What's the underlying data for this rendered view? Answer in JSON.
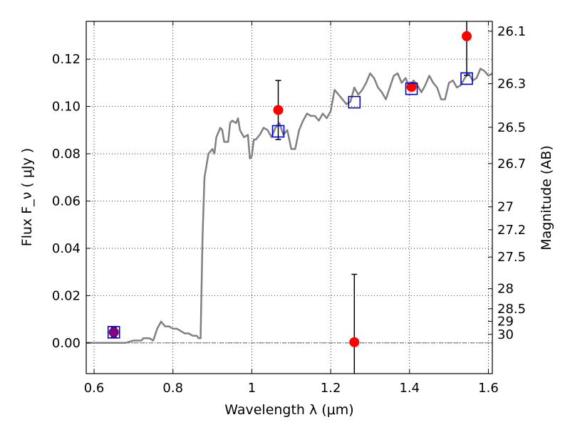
{
  "chart_data": {
    "type": "scatter",
    "xlabel": "Wavelength  λ (μm)",
    "ylabel_left": "Flux  F_ν  ( μJy )",
    "ylabel_right": "Magnitude (AB)",
    "xlim": [
      0.58,
      1.61
    ],
    "ylim": [
      -0.013,
      0.136
    ],
    "x_ticks": [
      0.6,
      0.8,
      1.0,
      1.2,
      1.4,
      1.6
    ],
    "x_tick_labels": [
      "0.6",
      "0.8",
      "1",
      "1.2",
      "1.4",
      "1.6"
    ],
    "y_ticks": [
      0.0,
      0.02,
      0.04,
      0.06,
      0.08,
      0.1,
      0.12
    ],
    "y_tick_labels": [
      "0.00",
      "0.02",
      "0.04",
      "0.06",
      "0.08",
      "0.10",
      "0.12"
    ],
    "right_ticks": [
      {
        "mag": 26.1,
        "label": "26.1"
      },
      {
        "mag": 26.3,
        "label": "26.3"
      },
      {
        "mag": 26.5,
        "label": "26.5"
      },
      {
        "mag": 26.7,
        "label": "26.7"
      },
      {
        "mag": 27.0,
        "label": "27"
      },
      {
        "mag": 27.2,
        "label": "27.2"
      },
      {
        "mag": 27.5,
        "label": "27.5"
      },
      {
        "mag": 28.0,
        "label": "28"
      },
      {
        "mag": 28.5,
        "label": "28.5"
      },
      {
        "mag": 29.0,
        "label": "29"
      },
      {
        "mag": 30.0,
        "label": "30"
      }
    ],
    "grid": true,
    "zero_line": true,
    "colors": {
      "sed": "#808080",
      "observed": "#ff0000",
      "model": "#0000cc",
      "model_first": "#800080",
      "errorbar": "#000000",
      "grid": "#000000"
    },
    "sed_template": {
      "x": [
        0.58,
        0.6,
        0.62,
        0.64,
        0.66,
        0.68,
        0.7,
        0.71,
        0.72,
        0.725,
        0.73,
        0.74,
        0.75,
        0.76,
        0.77,
        0.78,
        0.79,
        0.8,
        0.81,
        0.82,
        0.83,
        0.84,
        0.85,
        0.86,
        0.865,
        0.87,
        0.875,
        0.88,
        0.89,
        0.9,
        0.905,
        0.91,
        0.92,
        0.925,
        0.93,
        0.94,
        0.945,
        0.95,
        0.96,
        0.965,
        0.97,
        0.98,
        0.99,
        0.995,
        1.0,
        1.005,
        1.01,
        1.02,
        1.03,
        1.04,
        1.05,
        1.06,
        1.07,
        1.08,
        1.09,
        1.1,
        1.11,
        1.12,
        1.13,
        1.14,
        1.15,
        1.16,
        1.17,
        1.18,
        1.19,
        1.2,
        1.21,
        1.22,
        1.23,
        1.24,
        1.25,
        1.26,
        1.27,
        1.28,
        1.29,
        1.3,
        1.31,
        1.32,
        1.33,
        1.34,
        1.35,
        1.36,
        1.37,
        1.38,
        1.39,
        1.4,
        1.41,
        1.42,
        1.43,
        1.44,
        1.45,
        1.46,
        1.47,
        1.48,
        1.49,
        1.5,
        1.51,
        1.52,
        1.53,
        1.54,
        1.55,
        1.56,
        1.57,
        1.58,
        1.59,
        1.6,
        1.61
      ],
      "y": [
        0.0,
        0.0,
        0.0,
        0.0,
        0.0,
        0.0,
        0.001,
        0.001,
        0.001,
        0.002,
        0.002,
        0.002,
        0.001,
        0.006,
        0.009,
        0.007,
        0.007,
        0.006,
        0.006,
        0.005,
        0.004,
        0.004,
        0.003,
        0.003,
        0.002,
        0.002,
        0.045,
        0.07,
        0.08,
        0.082,
        0.08,
        0.087,
        0.091,
        0.09,
        0.085,
        0.085,
        0.093,
        0.094,
        0.093,
        0.095,
        0.09,
        0.087,
        0.088,
        0.078,
        0.079,
        0.086,
        0.086,
        0.088,
        0.091,
        0.09,
        0.087,
        0.091,
        0.093,
        0.088,
        0.09,
        0.082,
        0.082,
        0.09,
        0.094,
        0.097,
        0.096,
        0.096,
        0.094,
        0.097,
        0.095,
        0.098,
        0.107,
        0.105,
        0.103,
        0.101,
        0.102,
        0.108,
        0.105,
        0.107,
        0.11,
        0.114,
        0.112,
        0.108,
        0.106,
        0.103,
        0.108,
        0.113,
        0.114,
        0.11,
        0.112,
        0.108,
        0.111,
        0.109,
        0.106,
        0.109,
        0.113,
        0.11,
        0.108,
        0.103,
        0.103,
        0.11,
        0.111,
        0.108,
        0.109,
        0.112,
        0.114,
        0.111,
        0.112,
        0.116,
        0.115,
        0.113,
        0.114
      ]
    },
    "series": [
      {
        "marker": "filled-circle",
        "points": [
          {
            "x": 0.65,
            "y": 0.0045,
            "yerr": 0.002
          },
          {
            "x": 1.067,
            "y": 0.0985,
            "yerr": 0.0125
          },
          {
            "x": 1.26,
            "y": 0.0003,
            "yerr": 0.0287
          },
          {
            "x": 1.405,
            "y": 0.1083,
            "yerr": 0.0
          },
          {
            "x": 1.545,
            "y": 0.1297,
            "yerr": 0.0165
          }
        ]
      },
      {
        "marker": "open-square",
        "points": [
          {
            "x": 0.65,
            "y": 0.0045
          },
          {
            "x": 1.067,
            "y": 0.0895
          },
          {
            "x": 1.26,
            "y": 0.1018
          },
          {
            "x": 1.405,
            "y": 0.1075
          },
          {
            "x": 1.545,
            "y": 0.1118
          }
        ]
      }
    ]
  }
}
